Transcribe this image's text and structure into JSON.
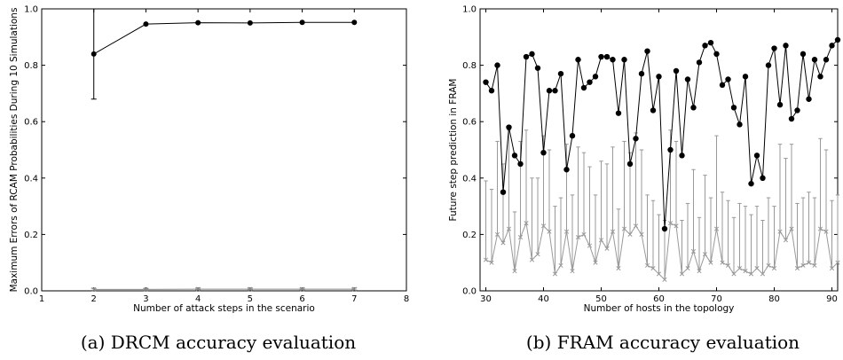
{
  "chart_data": [
    {
      "type": "line",
      "xlabel": "Number of attack steps in the scenario",
      "ylabel": "Maximum Errors of RCAM Probabilities During 10 Simulations",
      "xlim": [
        1,
        8
      ],
      "ylim": [
        0,
        1
      ],
      "x_ticks": [
        "1",
        "2",
        "3",
        "4",
        "5",
        "6",
        "7",
        "8"
      ],
      "y_ticks": [
        "0.0",
        "0.2",
        "0.4",
        "0.6",
        "0.8",
        "1.0"
      ],
      "series": [
        {
          "color": "#000000",
          "marker": "circle",
          "x": [
            2,
            3,
            4,
            5,
            6,
            7
          ],
          "values": [
            0.84,
            0.946,
            0.951,
            0.95,
            0.952,
            0.952
          ],
          "err_low": [
            0.68,
            null,
            null,
            null,
            null,
            null
          ],
          "err_high": [
            1.0,
            null,
            null,
            null,
            null,
            null
          ]
        },
        {
          "color": "#888888",
          "marker": "x",
          "x": [
            2,
            3,
            4,
            5,
            6,
            7
          ],
          "values": [
            0.005,
            0.005,
            0.006,
            0.006,
            0.006,
            0.006
          ],
          "err_low": [
            0.002,
            0.002,
            0.003,
            0.003,
            0.003,
            0.003
          ],
          "err_high": [
            0.009,
            0.008,
            0.01,
            0.01,
            0.01,
            0.01
          ]
        }
      ],
      "caption": "(a) DRCM accuracy evaluation"
    },
    {
      "type": "line",
      "xlabel": "Number of hosts in the topology",
      "ylabel": "Future step prediction in FRAM",
      "xlim": [
        29,
        91
      ],
      "ylim": [
        0,
        1
      ],
      "x_ticks": [
        "30",
        "40",
        "50",
        "60",
        "70",
        "80",
        "90"
      ],
      "y_ticks": [
        "0.0",
        "0.2",
        "0.4",
        "0.6",
        "0.8",
        "1.0"
      ],
      "series": [
        {
          "color": "#000000",
          "marker": "circle",
          "x": [
            30,
            31,
            32,
            33,
            34,
            35,
            36,
            37,
            38,
            39,
            40,
            41,
            42,
            43,
            44,
            45,
            46,
            47,
            48,
            49,
            50,
            51,
            52,
            53,
            54,
            55,
            56,
            57,
            58,
            59,
            60,
            61,
            62,
            63,
            64,
            65,
            66,
            67,
            68,
            69,
            70,
            71,
            72,
            73,
            74,
            75,
            76,
            77,
            78,
            79,
            80,
            81,
            82,
            83,
            84,
            85,
            86,
            87,
            88,
            89,
            90,
            91
          ],
          "values": [
            0.74,
            0.71,
            0.8,
            0.35,
            0.58,
            0.48,
            0.45,
            0.83,
            0.84,
            0.79,
            0.49,
            0.71,
            0.71,
            0.77,
            0.43,
            0.55,
            0.82,
            0.72,
            0.74,
            0.76,
            0.83,
            0.83,
            0.82,
            0.63,
            0.82,
            0.45,
            0.54,
            0.77,
            0.85,
            0.64,
            0.76,
            0.22,
            0.5,
            0.78,
            0.48,
            0.75,
            0.65,
            0.81,
            0.87,
            0.88,
            0.84,
            0.73,
            0.75,
            0.65,
            0.59,
            0.76,
            0.38,
            0.48,
            0.4,
            0.8,
            0.86,
            0.66,
            0.87,
            0.61,
            0.64,
            0.84,
            0.68,
            0.82,
            0.76,
            0.82,
            0.87,
            0.89
          ]
        },
        {
          "color": "#999999",
          "marker": "x",
          "x": [
            30,
            31,
            32,
            33,
            34,
            35,
            36,
            37,
            38,
            39,
            40,
            41,
            42,
            43,
            44,
            45,
            46,
            47,
            48,
            49,
            50,
            51,
            52,
            53,
            54,
            55,
            56,
            57,
            58,
            59,
            60,
            61,
            62,
            63,
            64,
            65,
            66,
            67,
            68,
            69,
            70,
            71,
            72,
            73,
            74,
            75,
            76,
            77,
            78,
            79,
            80,
            81,
            82,
            83,
            84,
            85,
            86,
            87,
            88,
            89,
            90,
            91
          ],
          "values": [
            0.11,
            0.1,
            0.2,
            0.17,
            0.22,
            0.07,
            0.19,
            0.24,
            0.11,
            0.13,
            0.23,
            0.21,
            0.06,
            0.09,
            0.21,
            0.07,
            0.19,
            0.2,
            0.16,
            0.1,
            0.18,
            0.15,
            0.21,
            0.08,
            0.22,
            0.2,
            0.23,
            0.2,
            0.09,
            0.08,
            0.06,
            0.04,
            0.24,
            0.23,
            0.06,
            0.08,
            0.14,
            0.07,
            0.13,
            0.1,
            0.22,
            0.1,
            0.09,
            0.06,
            0.08,
            0.07,
            0.06,
            0.08,
            0.06,
            0.09,
            0.08,
            0.21,
            0.18,
            0.22,
            0.08,
            0.09,
            0.1,
            0.09,
            0.22,
            0.21,
            0.08,
            0.1
          ],
          "err_high": [
            0.39,
            0.36,
            0.53,
            0.45,
            0.57,
            0.28,
            0.53,
            0.57,
            0.4,
            0.4,
            0.55,
            0.5,
            0.3,
            0.33,
            0.52,
            0.34,
            0.51,
            0.49,
            0.44,
            0.34,
            0.46,
            0.45,
            0.51,
            0.29,
            0.53,
            0.49,
            0.56,
            0.5,
            0.34,
            0.32,
            0.27,
            0.25,
            0.57,
            0.53,
            0.25,
            0.31,
            0.43,
            0.26,
            0.41,
            0.33,
            0.55,
            0.35,
            0.32,
            0.26,
            0.31,
            0.3,
            0.27,
            0.3,
            0.25,
            0.33,
            0.3,
            0.52,
            0.47,
            0.52,
            0.31,
            0.33,
            0.35,
            0.33,
            0.54,
            0.5,
            0.32,
            0.34
          ]
        }
      ],
      "caption": "(b) FRAM accuracy evaluation"
    }
  ]
}
